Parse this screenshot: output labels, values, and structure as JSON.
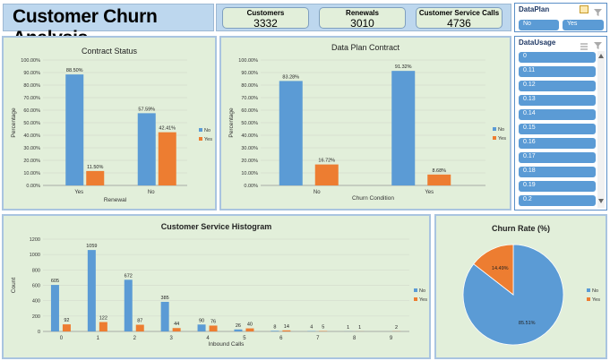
{
  "title": "Customer Churn Analysis",
  "kpis": [
    {
      "label": "Customers",
      "value": "3332"
    },
    {
      "label": "Renewals",
      "value": "3010"
    },
    {
      "label": "Customer Service Calls",
      "value": "4736"
    }
  ],
  "slicer_dataplan": {
    "header": "DataPlan",
    "options": [
      "No",
      "Yes"
    ],
    "icons": [
      "multi-select-icon",
      "clear-filter-icon"
    ]
  },
  "slicer_datausage": {
    "header": "DataUsage",
    "options": [
      "0",
      "0.11",
      "0.12",
      "0.13",
      "0.14",
      "0.15",
      "0.16",
      "0.17",
      "0.18",
      "0.19",
      "0.2"
    ],
    "icons": [
      "multi-select-icon",
      "clear-filter-icon"
    ]
  },
  "chart_data": [
    {
      "type": "bar",
      "title": "Contract Status",
      "categories": [
        "Yes",
        "No"
      ],
      "series": [
        {
          "name": "No",
          "values": [
            88.5,
            57.59
          ],
          "labels": [
            "88.50%",
            "57.59%"
          ],
          "color": "#5b9bd5"
        },
        {
          "name": "Yes",
          "values": [
            11.5,
            42.41
          ],
          "labels": [
            "11.50%",
            "42.41%"
          ],
          "color": "#ed7d31"
        }
      ],
      "xlabel": "Renewal",
      "ylabel": "Percentage",
      "ylim": [
        0,
        100
      ],
      "ticks": [
        "0.00%",
        "10.00%",
        "20.00%",
        "30.00%",
        "40.00%",
        "50.00%",
        "60.00%",
        "70.00%",
        "80.00%",
        "90.00%",
        "100.00%"
      ],
      "legend": "right"
    },
    {
      "type": "bar",
      "title": "Data Plan Contract",
      "categories": [
        "No",
        "Yes"
      ],
      "series": [
        {
          "name": "No",
          "values": [
            83.28,
            91.32
          ],
          "labels": [
            "83.28%",
            "91.32%"
          ],
          "color": "#5b9bd5"
        },
        {
          "name": "Yes",
          "values": [
            16.72,
            8.68
          ],
          "labels": [
            "16.72%",
            "8.68%"
          ],
          "color": "#ed7d31"
        }
      ],
      "xlabel": "Churn Condition",
      "ylabel": "Percentage",
      "ylim": [
        0,
        100
      ],
      "ticks": [
        "0.00%",
        "10.00%",
        "20.00%",
        "30.00%",
        "40.00%",
        "50.00%",
        "60.00%",
        "70.00%",
        "80.00%",
        "90.00%",
        "100.00%"
      ],
      "legend": "right"
    },
    {
      "type": "bar",
      "title": "Customer Service Histogram",
      "categories": [
        "0",
        "1",
        "2",
        "3",
        "4",
        "5",
        "6",
        "7",
        "8",
        "9"
      ],
      "series": [
        {
          "name": "No",
          "values": [
            605,
            1059,
            672,
            385,
            90,
            26,
            8,
            4,
            1,
            0
          ],
          "labels": [
            "605",
            "1059",
            "672",
            "385",
            "90",
            "26",
            "8",
            "4",
            "1",
            ""
          ],
          "color": "#5b9bd5"
        },
        {
          "name": "Yes",
          "values": [
            92,
            122,
            87,
            44,
            76,
            40,
            14,
            5,
            1,
            2
          ],
          "labels": [
            "92",
            "122",
            "87",
            "44",
            "76",
            "40",
            "14",
            "5",
            "1",
            "2"
          ],
          "color": "#ed7d31"
        }
      ],
      "xlabel": "Inbound Calls",
      "ylabel": "Count",
      "ylim": [
        0,
        1200
      ],
      "ticks": [
        "0",
        "200",
        "400",
        "600",
        "800",
        "1000",
        "1200"
      ],
      "legend": "right"
    },
    {
      "type": "pie",
      "title": "Churn Rate (%)",
      "slices": [
        {
          "name": "No",
          "value": 85.51,
          "label": "85.51%",
          "color": "#5b9bd5"
        },
        {
          "name": "Yes",
          "value": 14.49,
          "label": "14.49%",
          "color": "#ed7d31"
        }
      ],
      "legend": "right"
    }
  ]
}
